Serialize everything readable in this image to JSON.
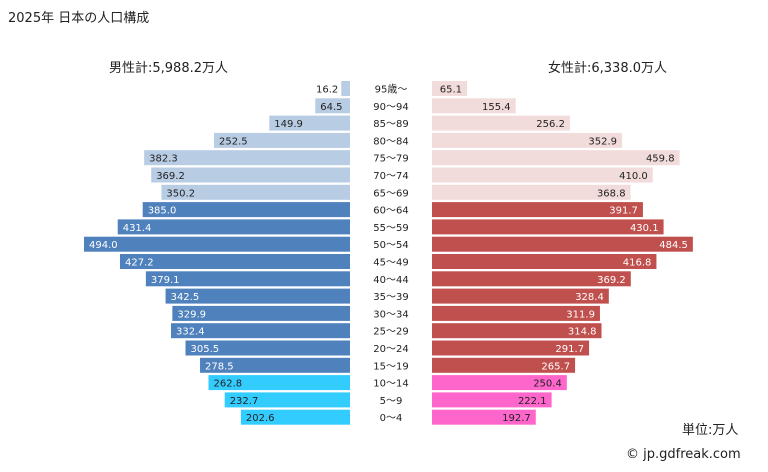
{
  "chart_data": {
    "type": "bar",
    "orientation": "horizontal-population-pyramid",
    "title": "2025年 日本の人口構成",
    "unit_label": "単位:万人",
    "credit": "© jp.gdfreak.com",
    "male_total_label": "男性計:5,988.2万人",
    "female_total_label": "女性計:6,338.0万人",
    "categories": [
      "95歳～",
      "90～94",
      "85～89",
      "80～84",
      "75～79",
      "70～74",
      "65～69",
      "60～64",
      "55～59",
      "50～54",
      "45～49",
      "40～44",
      "35～39",
      "30～34",
      "25～29",
      "20～24",
      "15～19",
      "10～14",
      "5～9",
      "0～4"
    ],
    "series": [
      {
        "key": "male",
        "values": [
          16.2,
          64.5,
          149.9,
          252.5,
          382.3,
          369.2,
          350.2,
          385.0,
          431.4,
          494.0,
          427.2,
          379.1,
          342.5,
          329.9,
          332.4,
          305.5,
          278.5,
          262.8,
          232.7,
          202.6
        ],
        "labels": [
          "16.2",
          "64.5",
          "149.9",
          "252.5",
          "382.3",
          "369.2",
          "350.2",
          "385.0",
          "431.4",
          "494.0",
          "427.2",
          "379.1",
          "342.5",
          "329.9",
          "332.4",
          "305.5",
          "278.5",
          "262.8",
          "232.7",
          "202.6"
        ]
      },
      {
        "key": "female",
        "values": [
          65.1,
          155.4,
          256.2,
          352.9,
          459.8,
          410.0,
          368.8,
          391.7,
          430.1,
          484.5,
          416.8,
          369.2,
          328.4,
          311.9,
          314.8,
          291.7,
          265.7,
          250.4,
          222.1,
          192.7
        ],
        "labels": [
          "65.1",
          "155.4",
          "256.2",
          "352.9",
          "459.8",
          "410.0",
          "368.8",
          "391.7",
          "430.1",
          "484.5",
          "416.8",
          "369.2",
          "328.4",
          "311.9",
          "314.8",
          "291.7",
          "265.7",
          "250.4",
          "222.1",
          "192.7"
        ]
      }
    ],
    "xlim": [
      0,
      500
    ],
    "grid": false,
    "colors": {
      "male_elderly": "#b8cce4",
      "male_working": "#4f81bd",
      "male_young": "#33ccff",
      "female_elderly": "#f2dcdb",
      "female_working": "#c0504d",
      "female_young": "#ff66cc"
    }
  }
}
